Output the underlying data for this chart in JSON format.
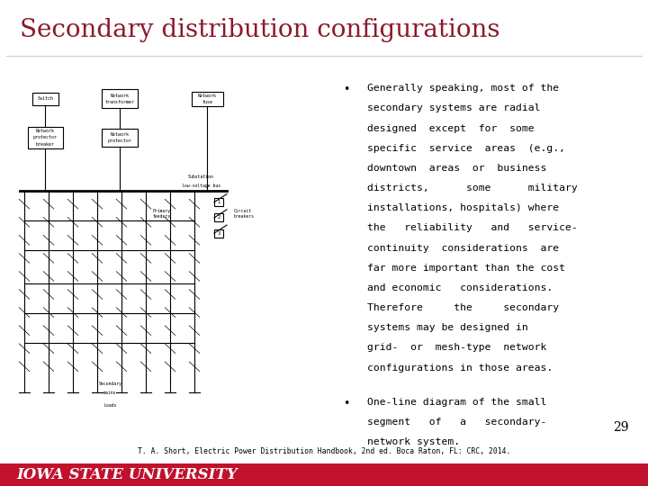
{
  "title": "Secondary distribution configurations",
  "title_color": "#8B1A2D",
  "title_fontsize": 20,
  "title_font": "serif",
  "bullet1_lines": [
    "Generally speaking, most of the",
    "secondary systems are radial",
    "designed  except  for  some",
    "specific  service  areas  (e.g.,",
    "downtown  areas  or  business",
    "districts,      some      military",
    "installations, hospitals) where",
    "the   reliability   and   service-",
    "continuity  considerations  are",
    "far more important than the cost",
    "and economic   considerations.",
    "Therefore     the     secondary",
    "systems may be designed in",
    "grid-  or  mesh-type  network",
    "configurations in those areas."
  ],
  "bullet2_lines": [
    "One-line diagram of the small",
    "segment   of   a   secondary-",
    "network system."
  ],
  "page_number": "29",
  "citation": "T. A. Short, Electric Power Distribution Handbook, 2nd ed. Boca Raton, FL: CRC, 2014.",
  "footer_text": "IOWA STATE UNIVERSITY",
  "footer_bg": "#C0122C",
  "footer_text_color": "#ffffff",
  "bg_color": "#ffffff",
  "text_color": "#000000",
  "bullet_font": "monospace",
  "bullet_fontsize": 8.2
}
